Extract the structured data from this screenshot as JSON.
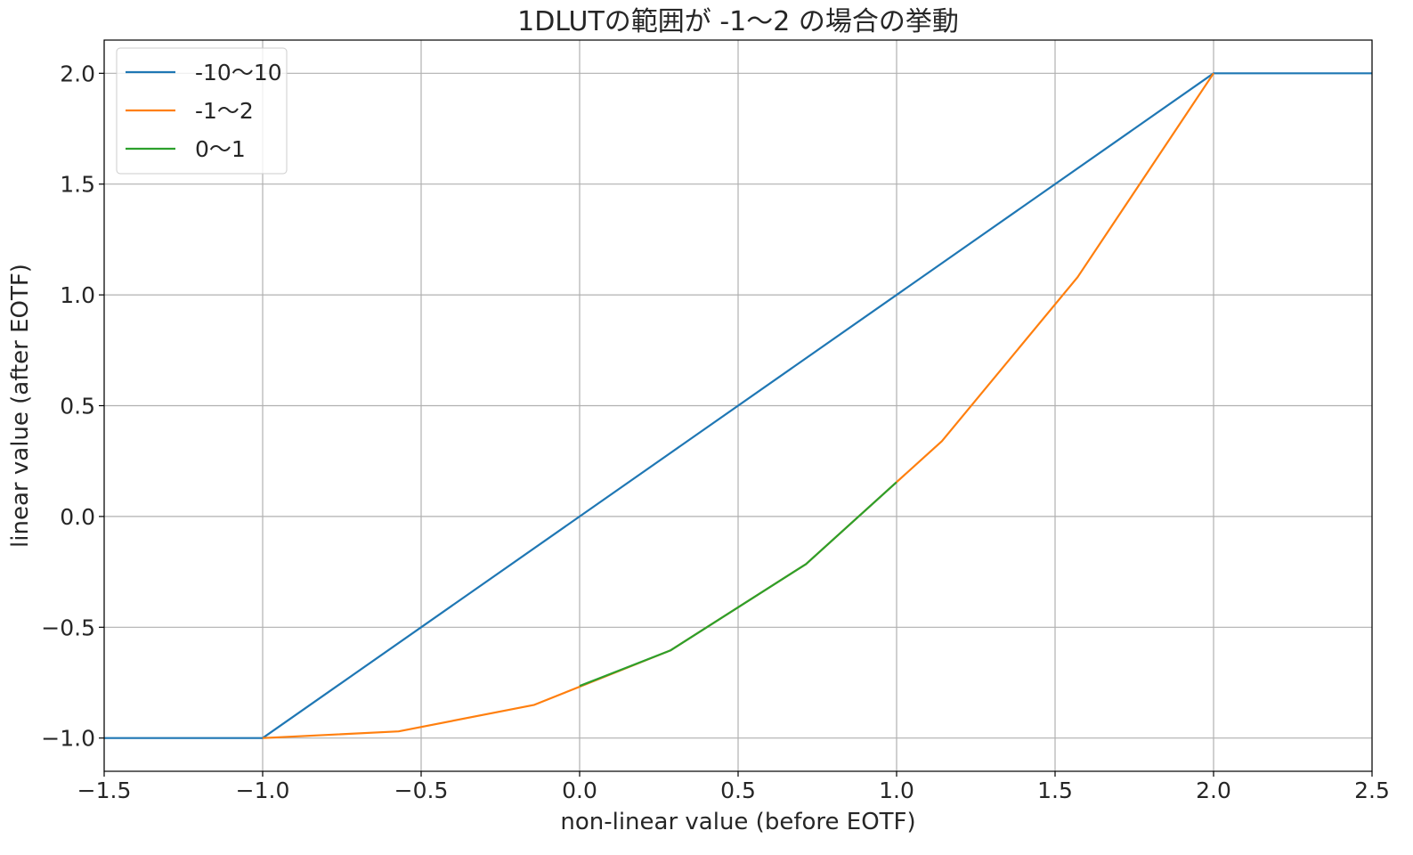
{
  "chart_data": {
    "type": "line",
    "title": "1DLUTの範囲が -1〜2 の場合の挙動",
    "xlabel": "non-linear value (before EOTF)",
    "ylabel": "linear value (after EOTF)",
    "xlim": [
      -1.5,
      2.5
    ],
    "ylim": [
      -1.15,
      2.15
    ],
    "xticks": [
      -1.5,
      -1.0,
      -0.5,
      0.0,
      0.5,
      1.0,
      1.5,
      2.0,
      2.5
    ],
    "xtick_labels": [
      "−1.5",
      "−1.0",
      "−0.5",
      "0.0",
      "0.5",
      "1.0",
      "1.5",
      "2.0",
      "2.5"
    ],
    "yticks": [
      -1.0,
      -0.5,
      0.0,
      0.5,
      1.0,
      1.5,
      2.0
    ],
    "ytick_labels": [
      "−1.0",
      "−0.5",
      "0.0",
      "0.5",
      "1.0",
      "1.5",
      "2.0"
    ],
    "grid": true,
    "legend_position": "top-left",
    "series": [
      {
        "name": "-10〜10",
        "color": "#1f77b4",
        "x": [
          -1.5,
          -1.0,
          2.0,
          2.5
        ],
        "y": [
          -1.0,
          -1.0,
          2.0,
          2.0
        ]
      },
      {
        "name": "-1〜2",
        "color": "#ff7f0e",
        "x": [
          -1.0,
          -0.571,
          -0.143,
          0.286,
          0.714,
          1.143,
          1.571,
          2.0
        ],
        "y": [
          -1.0,
          -0.97,
          -0.85,
          -0.605,
          -0.215,
          0.34,
          1.08,
          2.0
        ]
      },
      {
        "name": "0〜1",
        "color": "#2ca02c",
        "x": [
          0.0,
          0.286,
          0.714,
          1.0
        ],
        "y": [
          -0.765,
          -0.605,
          -0.215,
          0.155
        ]
      }
    ]
  }
}
